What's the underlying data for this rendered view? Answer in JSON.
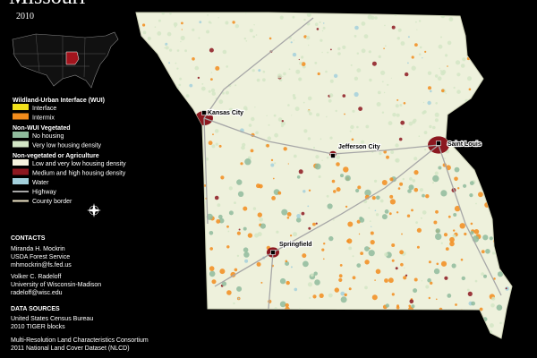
{
  "header": {
    "title": "Missouri",
    "year": "2010"
  },
  "legend": {
    "sections": [
      {
        "heading": "Wildland-Urban Interface (WUI)",
        "items": [
          {
            "label": "Interface",
            "color": "#f2e21b"
          },
          {
            "label": "Intermix",
            "color": "#f28c1c"
          }
        ]
      },
      {
        "heading": "Non-WUI Vegetated",
        "items": [
          {
            "label": "No housing",
            "color": "#8fbb9c"
          },
          {
            "label": "Very low housing density",
            "color": "#d3e6c6"
          }
        ]
      },
      {
        "heading": "Non-vegetated or Agriculture",
        "items": [
          {
            "label": "Low and very low housing density",
            "color": "#f6f2de"
          },
          {
            "label": "Medium and high housing density",
            "color": "#8c1820"
          },
          {
            "label": "Water",
            "color": "#a3d0dc"
          },
          {
            "label": "Highway",
            "color": "#a7a7a7",
            "line": true
          },
          {
            "label": "County border",
            "color": "#efe6c8",
            "line": true
          }
        ]
      }
    ]
  },
  "cities": [
    {
      "label": "Kansas City"
    },
    {
      "label": "Jefferson City"
    },
    {
      "label": "Saint Louis"
    },
    {
      "label": "Springfield"
    }
  ],
  "contacts": {
    "heading": "CONTACTS",
    "people": [
      [
        "Miranda H. Mockrin",
        "USDA Forest Service",
        "mhmockrin@fs.fed.us"
      ],
      [
        "Volker C. Radeloff",
        "University of Wisconsin-Madison",
        "radeloff@wisc.edu"
      ]
    ]
  },
  "sources": {
    "heading": "DATA SOURCES",
    "groups": [
      [
        "United States Census Bureau",
        "2010 TIGER blocks"
      ],
      [
        "Multi-Resolution Land Characteristics Consortium",
        "2011 National Land Cover Dataset (NLCD)"
      ]
    ]
  }
}
